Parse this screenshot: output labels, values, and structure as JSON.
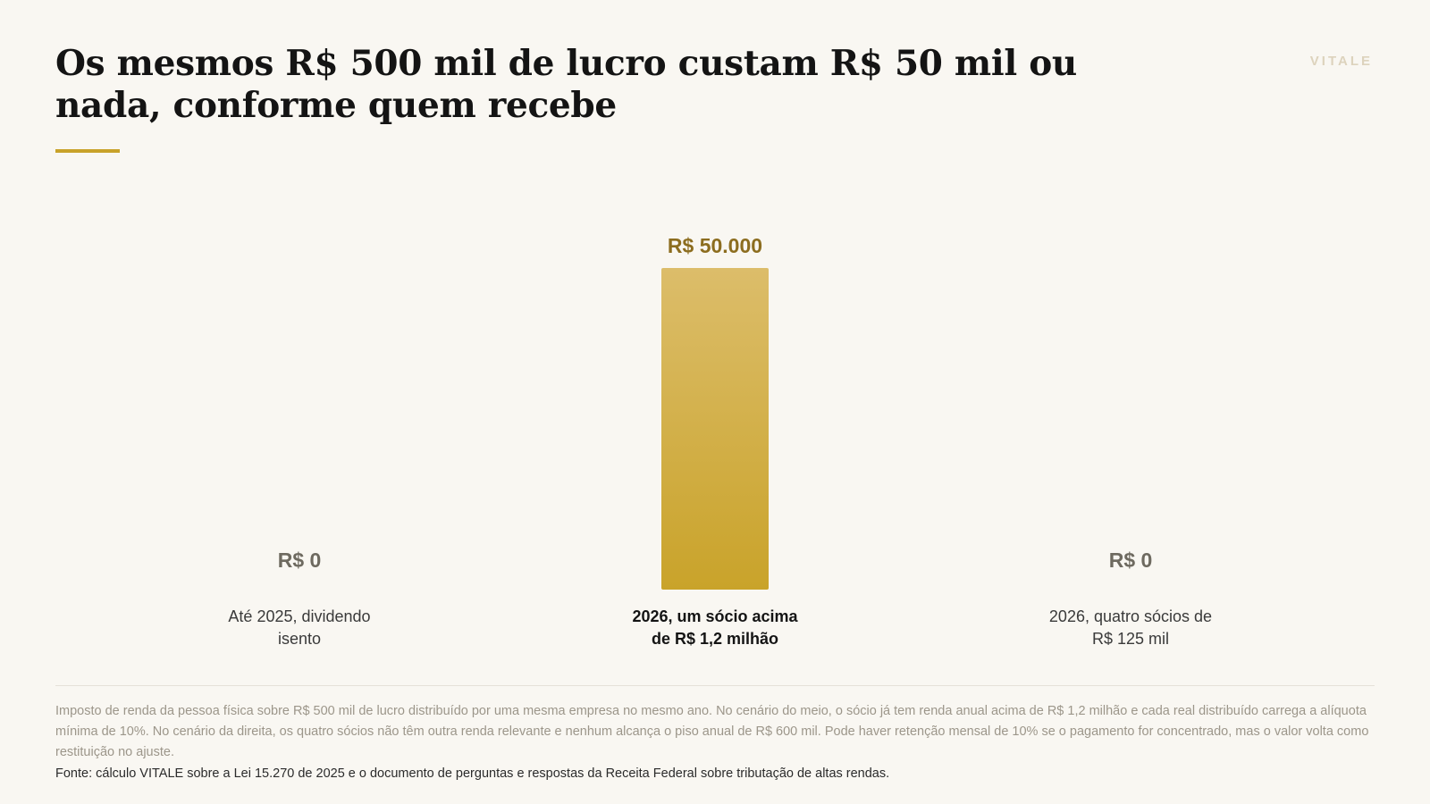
{
  "header": {
    "title": "Os mesmos R$ 500 mil de lucro custam R$ 50 mil ou nada, conforme quem recebe",
    "brand": "VITALE"
  },
  "colors": {
    "accent": "#c8a22a",
    "bar_top": "#dcbd6a",
    "bar_bottom": "#c9a32a",
    "value_highlight": "#8c6d1f",
    "value_muted": "#6e6a60"
  },
  "chart_data": {
    "type": "bar",
    "title": "Os mesmos R$ 500 mil de lucro custam R$ 50 mil ou nada, conforme quem recebe",
    "categories": [
      [
        "Até 2025, dividendo",
        "isento"
      ],
      [
        "2026, um sócio acima",
        "de R$ 1,2 milhão"
      ],
      [
        "2026, quatro sócios de",
        "R$ 125 mil"
      ]
    ],
    "values": [
      0,
      50000,
      0
    ],
    "value_labels": [
      "R$ 0",
      "R$ 50.000",
      "R$ 0"
    ],
    "highlight_index": 1,
    "ylim": [
      0,
      50000
    ],
    "xlabel": "",
    "ylabel": "",
    "grid": false,
    "legend": "none"
  },
  "footer": {
    "note": "Imposto de renda da pessoa física sobre R$ 500 mil de lucro distribuído por uma mesma empresa no mesmo ano. No cenário do meio, o sócio já tem renda anual acima de R$ 1,2 milhão e cada real distribuído carrega a alíquota mínima de 10%. No cenário da direita, os quatro sócios não têm outra renda relevante e nenhum alcança o piso anual de R$ 600 mil. Pode haver retenção mensal de 10% se o pagamento for concentrado, mas o valor volta como restituição no ajuste.",
    "source": "Fonte: cálculo VITALE sobre a Lei 15.270 de 2025 e o documento de perguntas e respostas da Receita Federal sobre tributação de altas rendas."
  }
}
